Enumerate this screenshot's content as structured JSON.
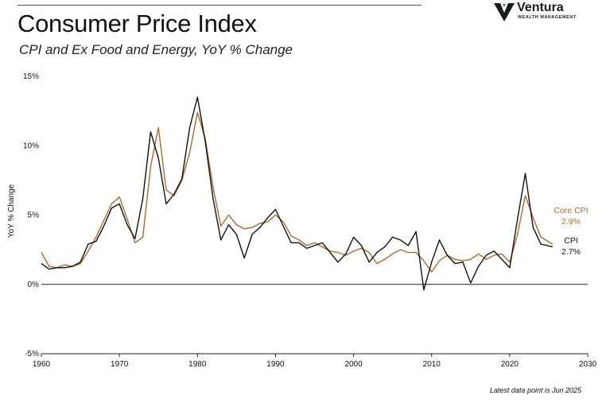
{
  "header": {
    "title": "Consumer Price Index",
    "subtitle": "CPI and Ex Food and Energy, YoY % Change"
  },
  "logo": {
    "name": "Ventura",
    "tagline": "WEALTH MANAGEMENT",
    "colors": {
      "mark": "#1c1c1c",
      "accent": "#2e8b57"
    }
  },
  "footnote": "Latest data point is Jun 2025",
  "chart_data": {
    "type": "line",
    "title": "Consumer Price Index",
    "subtitle": "CPI and Ex Food and Energy, YoY % Change",
    "xlabel": "",
    "ylabel": "YoY % Change",
    "xlim": [
      1960,
      2030
    ],
    "ylim": [
      -5,
      15
    ],
    "x_ticks": [
      1960,
      1970,
      1980,
      1990,
      2000,
      2010,
      2020,
      2030
    ],
    "x_tick_labels": [
      "1960",
      "1970",
      "1980",
      "1990",
      "2000",
      "2010",
      "2020",
      "2030"
    ],
    "y_ticks": [
      -5,
      0,
      5,
      10,
      15
    ],
    "y_tick_labels": [
      "-5%",
      "0%",
      "5%",
      "10%",
      "15%"
    ],
    "grid": false,
    "legend": "direct labels at right end of lines",
    "series": [
      {
        "name": "Core CPI",
        "end_label": "2.9%",
        "color": "#b0692a",
        "points": [
          [
            1960,
            2.3
          ],
          [
            1961,
            1.3
          ],
          [
            1962,
            1.2
          ],
          [
            1963,
            1.4
          ],
          [
            1964,
            1.3
          ],
          [
            1965,
            1.5
          ],
          [
            1966,
            2.4
          ],
          [
            1967,
            3.4
          ],
          [
            1968,
            4.6
          ],
          [
            1969,
            5.8
          ],
          [
            1970,
            6.3
          ],
          [
            1971,
            4.7
          ],
          [
            1972,
            3.0
          ],
          [
            1973,
            3.4
          ],
          [
            1974,
            8.5
          ],
          [
            1975,
            11.3
          ],
          [
            1976,
            6.8
          ],
          [
            1977,
            6.4
          ],
          [
            1978,
            7.5
          ],
          [
            1979,
            9.5
          ],
          [
            1980,
            12.4
          ],
          [
            1981,
            10.5
          ],
          [
            1982,
            7.0
          ],
          [
            1983,
            4.2
          ],
          [
            1984,
            5.0
          ],
          [
            1985,
            4.3
          ],
          [
            1986,
            4.0
          ],
          [
            1987,
            4.1
          ],
          [
            1988,
            4.4
          ],
          [
            1989,
            4.5
          ],
          [
            1990,
            5.0
          ],
          [
            1991,
            4.5
          ],
          [
            1992,
            3.5
          ],
          [
            1993,
            3.2
          ],
          [
            1994,
            2.8
          ],
          [
            1995,
            3.0
          ],
          [
            1996,
            2.7
          ],
          [
            1997,
            2.4
          ],
          [
            1998,
            2.3
          ],
          [
            1999,
            2.1
          ],
          [
            2000,
            2.4
          ],
          [
            2001,
            2.6
          ],
          [
            2002,
            2.3
          ],
          [
            2003,
            1.5
          ],
          [
            2004,
            1.8
          ],
          [
            2005,
            2.2
          ],
          [
            2006,
            2.5
          ],
          [
            2007,
            2.3
          ],
          [
            2008,
            2.3
          ],
          [
            2009,
            1.7
          ],
          [
            2010,
            0.9
          ],
          [
            2011,
            1.7
          ],
          [
            2012,
            2.1
          ],
          [
            2013,
            1.8
          ],
          [
            2014,
            1.7
          ],
          [
            2015,
            1.8
          ],
          [
            2016,
            2.2
          ],
          [
            2017,
            1.8
          ],
          [
            2018,
            2.1
          ],
          [
            2019,
            2.2
          ],
          [
            2020,
            1.6
          ],
          [
            2021,
            3.6
          ],
          [
            2022,
            6.4
          ],
          [
            2023,
            4.8
          ],
          [
            2024,
            3.4
          ],
          [
            2025.5,
            2.9
          ]
        ]
      },
      {
        "name": "CPI",
        "end_label": "2.7%",
        "color": "#111111",
        "points": [
          [
            1960,
            1.5
          ],
          [
            1961,
            1.1
          ],
          [
            1962,
            1.2
          ],
          [
            1963,
            1.2
          ],
          [
            1964,
            1.3
          ],
          [
            1965,
            1.6
          ],
          [
            1966,
            2.9
          ],
          [
            1967,
            3.1
          ],
          [
            1968,
            4.2
          ],
          [
            1969,
            5.5
          ],
          [
            1970,
            5.8
          ],
          [
            1971,
            4.3
          ],
          [
            1972,
            3.3
          ],
          [
            1973,
            6.2
          ],
          [
            1974,
            11.0
          ],
          [
            1975,
            9.1
          ],
          [
            1976,
            5.8
          ],
          [
            1977,
            6.5
          ],
          [
            1978,
            7.6
          ],
          [
            1979,
            11.3
          ],
          [
            1980,
            13.5
          ],
          [
            1981,
            10.3
          ],
          [
            1982,
            6.2
          ],
          [
            1983,
            3.2
          ],
          [
            1984,
            4.3
          ],
          [
            1985,
            3.6
          ],
          [
            1986,
            1.9
          ],
          [
            1987,
            3.6
          ],
          [
            1988,
            4.1
          ],
          [
            1989,
            4.8
          ],
          [
            1990,
            5.4
          ],
          [
            1991,
            4.2
          ],
          [
            1992,
            3.0
          ],
          [
            1993,
            3.0
          ],
          [
            1994,
            2.6
          ],
          [
            1995,
            2.8
          ],
          [
            1996,
            3.0
          ],
          [
            1997,
            2.3
          ],
          [
            1998,
            1.6
          ],
          [
            1999,
            2.2
          ],
          [
            2000,
            3.4
          ],
          [
            2001,
            2.8
          ],
          [
            2002,
            1.6
          ],
          [
            2003,
            2.3
          ],
          [
            2004,
            2.7
          ],
          [
            2005,
            3.4
          ],
          [
            2006,
            3.2
          ],
          [
            2007,
            2.8
          ],
          [
            2008,
            3.8
          ],
          [
            2009,
            -0.4
          ],
          [
            2010,
            1.6
          ],
          [
            2011,
            3.2
          ],
          [
            2012,
            2.1
          ],
          [
            2013,
            1.5
          ],
          [
            2014,
            1.6
          ],
          [
            2015,
            0.1
          ],
          [
            2016,
            1.3
          ],
          [
            2017,
            2.1
          ],
          [
            2018,
            2.4
          ],
          [
            2019,
            1.8
          ],
          [
            2020,
            1.2
          ],
          [
            2021,
            4.7
          ],
          [
            2022,
            8.0
          ],
          [
            2023,
            4.1
          ],
          [
            2024,
            2.9
          ],
          [
            2025.5,
            2.7
          ]
        ]
      }
    ]
  }
}
